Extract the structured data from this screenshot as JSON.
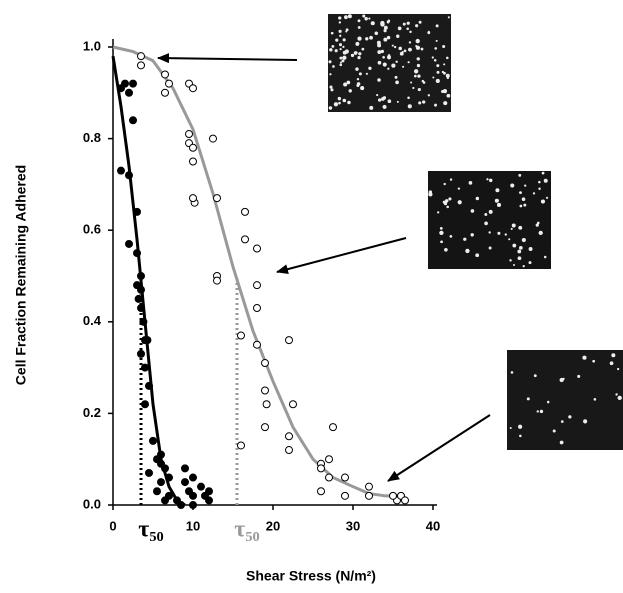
{
  "chart_data": {
    "type": "scatter",
    "x_label": "Shear Stress (N/m²)",
    "y_label": "Cell Fraction Remaining Adhered",
    "xlim": [
      0,
      40
    ],
    "xticks": [
      0,
      10,
      20,
      30,
      40
    ],
    "ylim": [
      0,
      1
    ],
    "yticks": [
      {
        "value": 0,
        "label": "0.0"
      },
      0.2,
      0.4,
      0.6,
      0.8,
      {
        "value": 1,
        "label": "1.0"
      }
    ],
    "series": [
      {
        "color": "#000000",
        "marker": "filled",
        "x": [
          1,
          1.5,
          2,
          2.5,
          1,
          2,
          2.5,
          3,
          2,
          3,
          3.5,
          3,
          3.5,
          3.2,
          3.5,
          3.8,
          4,
          4.3,
          3.5,
          4,
          4.5,
          4,
          5,
          5.5,
          6,
          6,
          6.5,
          7,
          6,
          5.5,
          7,
          8,
          9,
          9.5,
          10,
          9,
          10,
          11,
          11.5,
          12,
          8.5,
          10,
          12,
          6.5,
          4.5
        ],
        "values": [
          0.91,
          0.92,
          0.9,
          0.92,
          0.73,
          0.72,
          0.84,
          0.64,
          0.57,
          0.55,
          0.5,
          0.48,
          0.47,
          0.45,
          0.43,
          0.4,
          0.36,
          0.36,
          0.33,
          0.3,
          0.26,
          0.22,
          0.14,
          0.1,
          0.11,
          0.09,
          0.08,
          0.06,
          0.05,
          0.03,
          0.02,
          0.01,
          0.05,
          0.03,
          0.02,
          0.08,
          0.06,
          0.04,
          0.02,
          0.03,
          0,
          0,
          0.01,
          0.01,
          0.07
        ]
      },
      {
        "color": "#000000",
        "marker": "open",
        "x": [
          3.5,
          3.5,
          6.5,
          7,
          6.5,
          9.5,
          10,
          9.5,
          9.5,
          10,
          10,
          12.5,
          10.2,
          10,
          13,
          16.5,
          16.5,
          18,
          13,
          13,
          18,
          18,
          16,
          18,
          19,
          22,
          19,
          19.2,
          19,
          22.5,
          22,
          22,
          16,
          26,
          26,
          27,
          27,
          27.5,
          26,
          29,
          29,
          32,
          32,
          35.5,
          36,
          36.5,
          35
        ],
        "values": [
          0.98,
          0.96,
          0.94,
          0.92,
          0.9,
          0.92,
          0.91,
          0.81,
          0.79,
          0.78,
          0.75,
          0.8,
          0.66,
          0.67,
          0.67,
          0.64,
          0.58,
          0.56,
          0.5,
          0.49,
          0.48,
          0.43,
          0.37,
          0.35,
          0.31,
          0.36,
          0.25,
          0.22,
          0.17,
          0.22,
          0.15,
          0.12,
          0.13,
          0.09,
          0.08,
          0.1,
          0.06,
          0.17,
          0.03,
          0.06,
          0.02,
          0.04,
          0.02,
          0.01,
          0.02,
          0.01,
          0.02
        ]
      }
    ],
    "curves": [
      {
        "color": "#000000",
        "x": [
          0,
          1,
          2,
          3,
          4,
          5,
          6,
          7,
          8,
          9
        ],
        "values": [
          0.98,
          0.87,
          0.74,
          0.58,
          0.4,
          0.22,
          0.1,
          0.04,
          0.01,
          0
        ]
      },
      {
        "color": "#999999",
        "x": [
          0,
          2.5,
          5,
          7.5,
          10,
          12.5,
          15,
          17.5,
          20,
          22.5,
          25,
          27.5,
          30,
          32,
          34,
          36
        ],
        "values": [
          1,
          0.99,
          0.97,
          0.91,
          0.82,
          0.68,
          0.52,
          0.38,
          0.27,
          0.17,
          0.1,
          0.06,
          0.04,
          0.025,
          0.02,
          0.02
        ]
      }
    ],
    "reference_lines": [
      {
        "color": "#000000",
        "x": 3.5,
        "y": 0.46,
        "label": "τ₅₀"
      },
      {
        "color": "#999999",
        "x": 15.5,
        "y": 0.5,
        "label": "τ₅₀"
      }
    ]
  }
}
